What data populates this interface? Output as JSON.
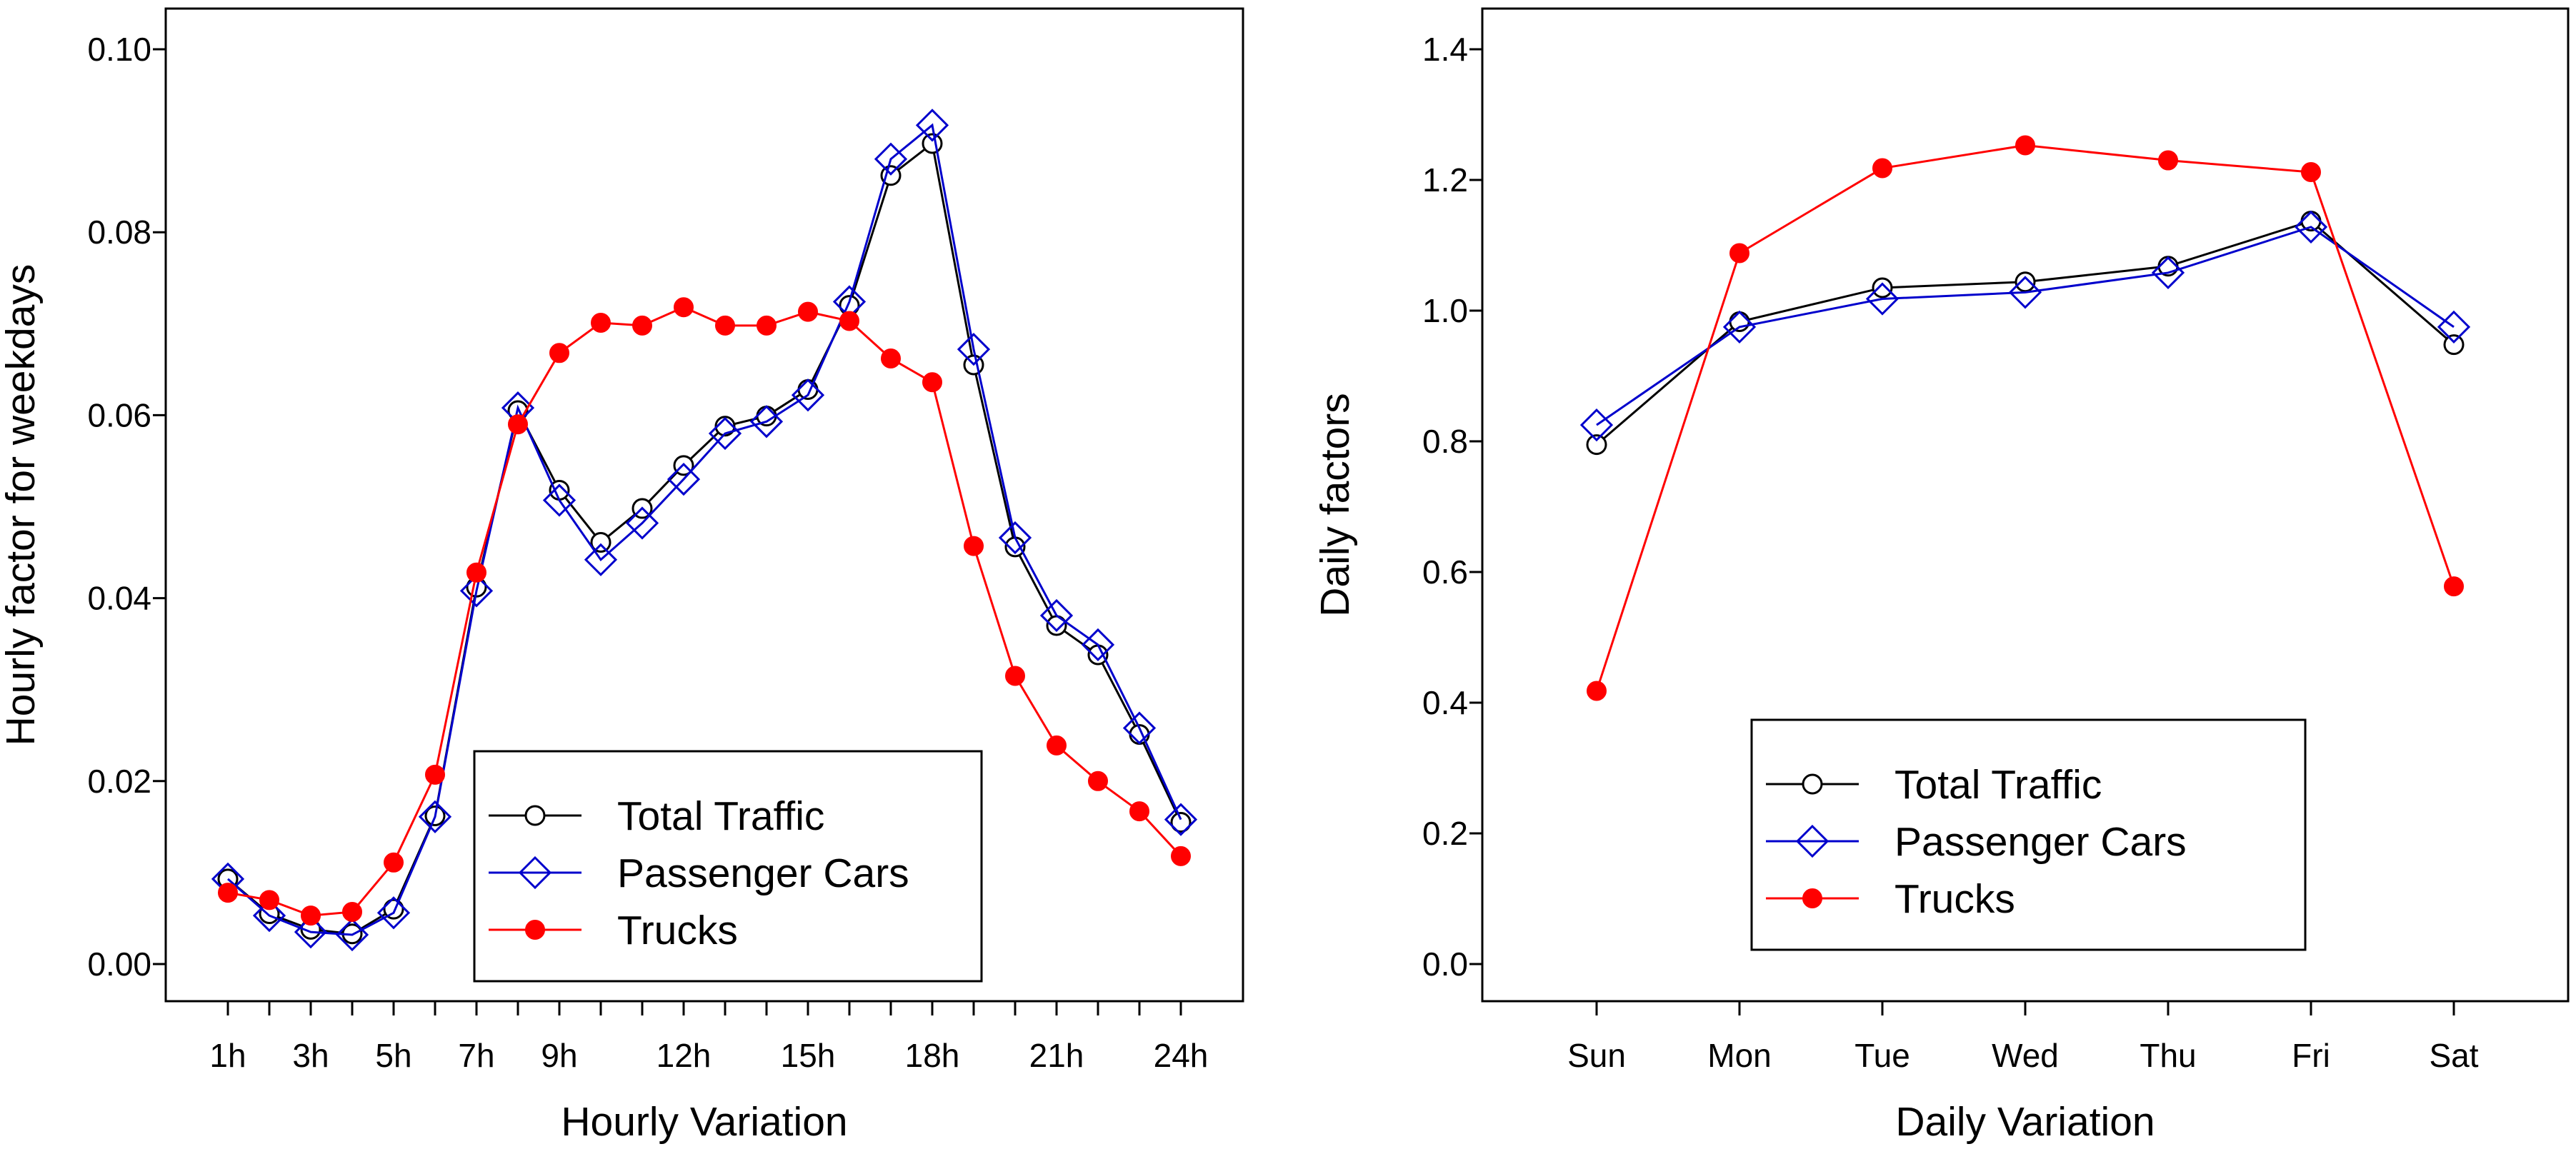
{
  "colors": {
    "total": "#000000",
    "passenger": "#0000cc",
    "trucks": "#ff0000",
    "axis": "#000000"
  },
  "legend": {
    "total": "Total Traffic",
    "passenger": "Passenger Cars",
    "trucks": "Trucks"
  },
  "chart_data": [
    {
      "type": "line",
      "xlabel": "Hourly Variation",
      "ylabel": "Hourly factor for weekdays",
      "legend_position": "bottom-right",
      "ylim": [
        0,
        0.1
      ],
      "yticks": [
        "0.00",
        "0.02",
        "0.04",
        "0.06",
        "0.08",
        "0.10"
      ],
      "ytick_values": [
        0,
        0.02,
        0.04,
        0.06,
        0.08,
        0.1
      ],
      "x": [
        1,
        2,
        3,
        4,
        5,
        6,
        7,
        8,
        9,
        10,
        11,
        12,
        13,
        14,
        15,
        16,
        17,
        18,
        19,
        20,
        21,
        22,
        23,
        24
      ],
      "xticks": [
        "1h",
        "3h",
        "5h",
        "7h",
        "9h",
        "12h",
        "15h",
        "18h",
        "21h",
        "24h"
      ],
      "xtick_values": [
        1,
        3,
        5,
        7,
        9,
        12,
        15,
        18,
        21,
        24
      ],
      "series": [
        {
          "name": "Total Traffic",
          "key": "total",
          "marker": "circle",
          "values": [
            0.0093,
            0.0055,
            0.0038,
            0.0033,
            0.006,
            0.0162,
            0.0412,
            0.0605,
            0.0518,
            0.0461,
            0.0498,
            0.0545,
            0.0588,
            0.0599,
            0.0628,
            0.072,
            0.0862,
            0.0897,
            0.0655,
            0.0456,
            0.037,
            0.0338,
            0.0251,
            0.0155
          ]
        },
        {
          "name": "Passenger Cars",
          "key": "passenger",
          "marker": "diamond",
          "values": [
            0.0093,
            0.0053,
            0.0035,
            0.0032,
            0.0056,
            0.0161,
            0.0408,
            0.0608,
            0.0507,
            0.0442,
            0.0482,
            0.053,
            0.058,
            0.0593,
            0.0622,
            0.0724,
            0.088,
            0.0917,
            0.0672,
            0.0466,
            0.0381,
            0.0349,
            0.0258,
            0.0158
          ]
        },
        {
          "name": "Trucks",
          "key": "trucks",
          "marker": "filled-circle",
          "values": [
            0.0078,
            0.007,
            0.0053,
            0.0057,
            0.0111,
            0.0207,
            0.0428,
            0.059,
            0.0668,
            0.0701,
            0.0698,
            0.0718,
            0.0698,
            0.0698,
            0.0713,
            0.0703,
            0.0662,
            0.0636,
            0.0457,
            0.0315,
            0.0239,
            0.02,
            0.0167,
            0.0118
          ]
        }
      ]
    },
    {
      "type": "line",
      "xlabel": "Daily Variation",
      "ylabel": "Daily factors",
      "legend_position": "bottom-center",
      "ylim": [
        0,
        1.4
      ],
      "yticks": [
        "0.0",
        "0.2",
        "0.4",
        "0.6",
        "0.8",
        "1.0",
        "1.2",
        "1.4"
      ],
      "ytick_values": [
        0,
        0.2,
        0.4,
        0.6,
        0.8,
        1.0,
        1.2,
        1.4
      ],
      "categories": [
        "Sun",
        "Mon",
        "Tue",
        "Wed",
        "Thu",
        "Fri",
        "Sat"
      ],
      "series": [
        {
          "name": "Total Traffic",
          "key": "total",
          "marker": "circle",
          "values": [
            0.795,
            0.983,
            1.035,
            1.044,
            1.068,
            1.137,
            0.948
          ]
        },
        {
          "name": "Passenger Cars",
          "key": "passenger",
          "marker": "diamond",
          "values": [
            0.825,
            0.975,
            1.018,
            1.028,
            1.058,
            1.128,
            0.975
          ]
        },
        {
          "name": "Trucks",
          "key": "trucks",
          "marker": "filled-circle",
          "values": [
            0.418,
            1.088,
            1.218,
            1.253,
            1.23,
            1.212,
            0.578
          ]
        }
      ]
    }
  ]
}
